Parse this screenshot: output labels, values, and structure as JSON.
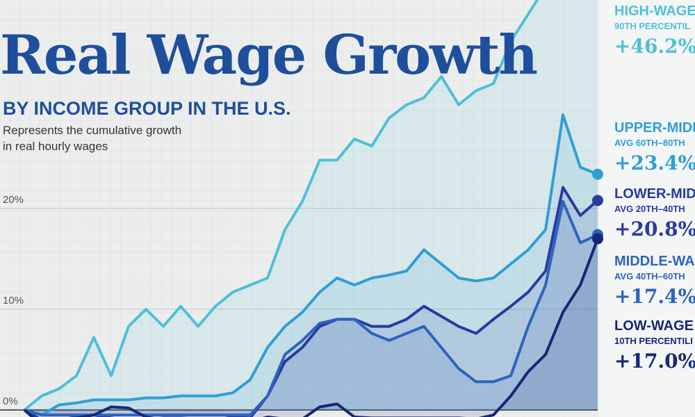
{
  "chart_data": {
    "type": "line",
    "title": "Real Wage Growth",
    "subtitle": "BY INCOME GROUP IN THE U.S.",
    "description": [
      "Represents the cumulative growth",
      "in real hourly wages"
    ],
    "categories": [
      null,
      null,
      null,
      null,
      null,
      null,
      null,
      null,
      null,
      null,
      null,
      null,
      null,
      null,
      null,
      null,
      null,
      null,
      null,
      null,
      null,
      null,
      null,
      null,
      null,
      null,
      null,
      null,
      null,
      null,
      null,
      null,
      null,
      null
    ],
    "ylim": [
      -0.7,
      40.7
    ],
    "yticks": [
      {
        "value": 0,
        "label": "0%"
      },
      {
        "value": 10,
        "label": "10%"
      },
      {
        "value": 20,
        "label": "20%"
      }
    ],
    "grid": true,
    "series": [
      {
        "name": "HIGH-WAGE",
        "group": "90TH PERCENTIL",
        "end_label": "+46.2%",
        "color": "#4fc0d8",
        "values": [
          0,
          1.4,
          2.1,
          3.4,
          7.2,
          3.4,
          8.3,
          10,
          8.3,
          10.3,
          8.3,
          10.3,
          11.7,
          12.4,
          13.1,
          17.9,
          20.7,
          24.8,
          24.8,
          26.9,
          26.2,
          29,
          30.3,
          31,
          33.1,
          30.3,
          31.7,
          32.4,
          36.6,
          39.3,
          42,
          43.4,
          44.8,
          46.2
        ]
      },
      {
        "name": "UPPER-MIDI",
        "group": "AVG 60TH–80TH",
        "end_label": "+23.4%",
        "color": "#2e9fd6",
        "values": [
          0,
          -0.5,
          0.5,
          0.7,
          1,
          1,
          1,
          1.2,
          1.2,
          1.4,
          1.4,
          1.4,
          1.7,
          3,
          6.2,
          8.3,
          9.7,
          11.7,
          13.1,
          12.4,
          13.1,
          13.4,
          13.8,
          15.9,
          14.5,
          13.1,
          12.8,
          13.1,
          14.5,
          15.9,
          17.9,
          29.3,
          24.1,
          23.4
        ]
      },
      {
        "name": "LOWER-MID",
        "group": "AVG 20TH–40TH",
        "end_label": "+20.8%",
        "color": "#2b3aa0",
        "values": [
          0,
          -1,
          -1,
          -0.7,
          -0.5,
          -0.8,
          -1,
          -1,
          -0.8,
          -0.8,
          -0.9,
          -1,
          -0.7,
          -0.8,
          1.4,
          4.8,
          6.2,
          8.3,
          9,
          9,
          8.3,
          8.3,
          9,
          10.3,
          9.3,
          8.3,
          7.6,
          9,
          10.3,
          11.7,
          13.8,
          22.1,
          19.3,
          20.8
        ]
      },
      {
        "name": "MIDDLE-WA",
        "group": "AVG 40TH–60TH",
        "end_label": "+17.4%",
        "color": "#2f63bd",
        "values": [
          0,
          -0.5,
          -0.5,
          -0.5,
          -0.5,
          -0.5,
          -0.5,
          -0.5,
          -0.5,
          -0.5,
          -0.5,
          -0.5,
          -0.5,
          -0.5,
          1.4,
          5.5,
          6.9,
          8.6,
          9,
          9,
          7.6,
          6.9,
          7.6,
          8.3,
          6.2,
          4.1,
          2.8,
          2.8,
          3.4,
          8.3,
          12.4,
          20.7,
          16.6,
          17.4
        ]
      },
      {
        "name": "LOW-WAGE",
        "group": "10TH PERCENTILI",
        "end_label": "+17.0%",
        "color": "#162773",
        "values": [
          0,
          -1.5,
          -1,
          -0.8,
          -0.5,
          0.3,
          0.2,
          -0.7,
          -1,
          -1.2,
          -1.2,
          -1.2,
          -1.2,
          -1.2,
          -0.7,
          -0.9,
          -0.9,
          0.3,
          0.6,
          -0.7,
          -0.8,
          -0.8,
          -0.8,
          -0.8,
          -0.8,
          -0.8,
          -0.9,
          -0.5,
          1.4,
          3.8,
          5.5,
          9.7,
          12.4,
          17
        ]
      }
    ]
  }
}
